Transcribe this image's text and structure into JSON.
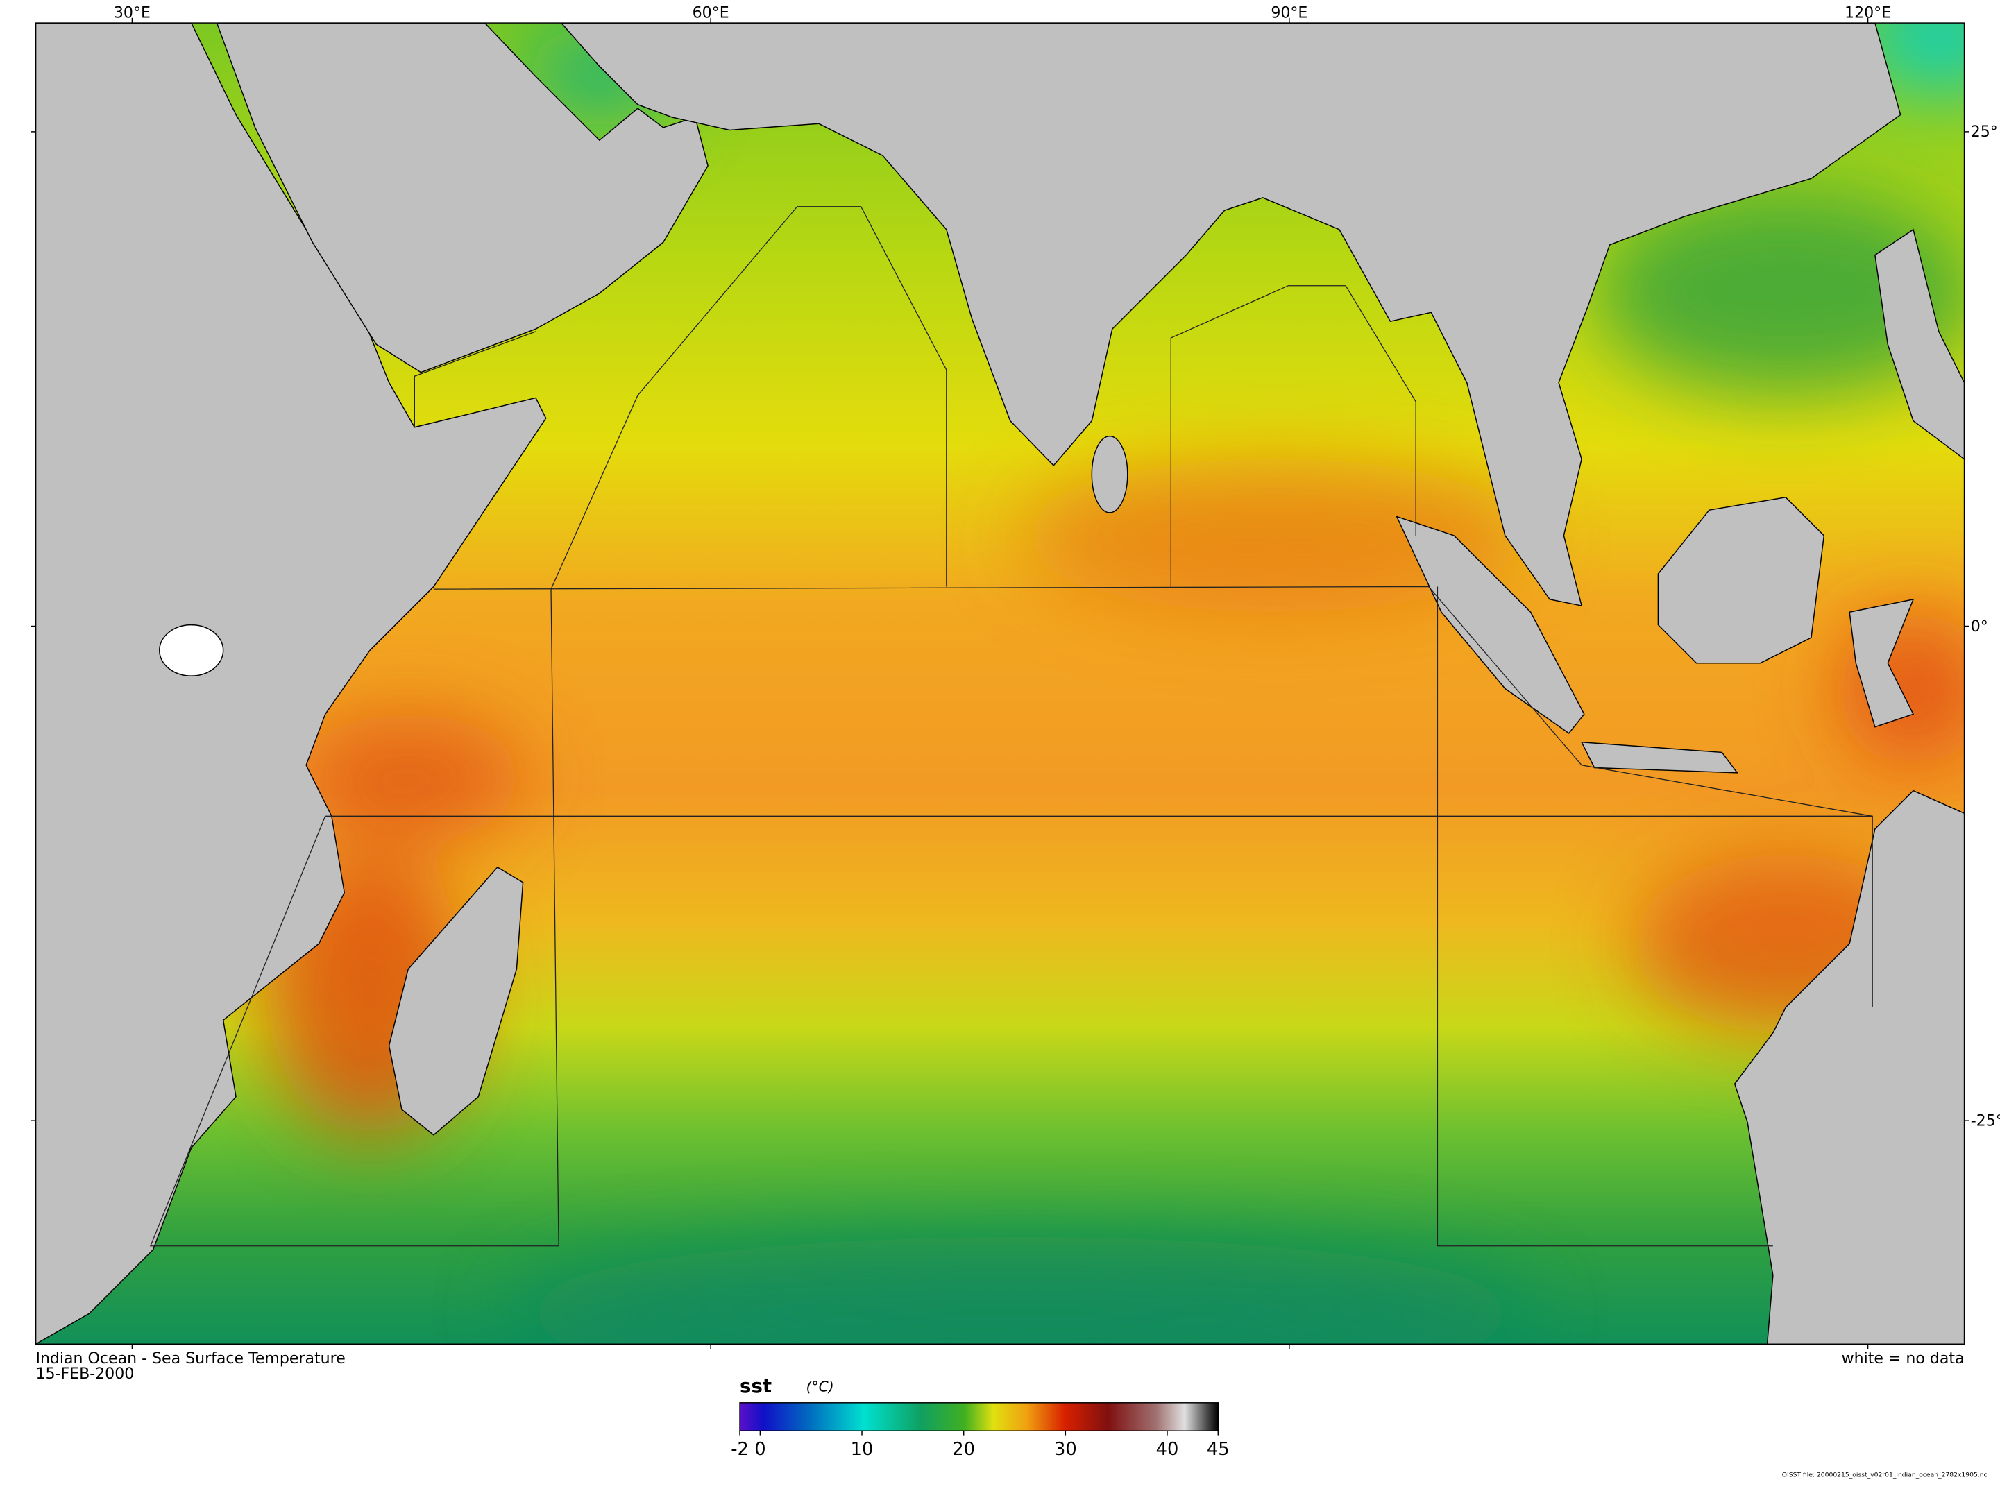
{
  "map": {
    "title": "Indian Ocean - Sea Surface Temperature",
    "date": "15-FEB-2000",
    "note": "white = no data",
    "file": "OISST file: 20000215_oisst_v02r01_indian_ocean_2782x1905.nc",
    "lonlim": [
      25,
      125
    ],
    "latlim": [
      30.5,
      -36.3
    ],
    "lonticks": [
      {
        "value": 30,
        "label": "30°E"
      },
      {
        "value": 60,
        "label": "60°E"
      },
      {
        "value": 90,
        "label": "90°E"
      },
      {
        "value": 120,
        "label": "120°E"
      }
    ],
    "latticks": [
      {
        "value": 25,
        "label": "25°"
      },
      {
        "value": 0,
        "label": "0°"
      },
      {
        "value": -25,
        "label": "-25°"
      }
    ]
  },
  "colorbar": {
    "variable": "sst",
    "units": "(°C)",
    "range": [
      -2,
      45
    ],
    "ticks": [
      -2,
      0,
      10,
      20,
      30,
      40,
      45
    ]
  }
}
